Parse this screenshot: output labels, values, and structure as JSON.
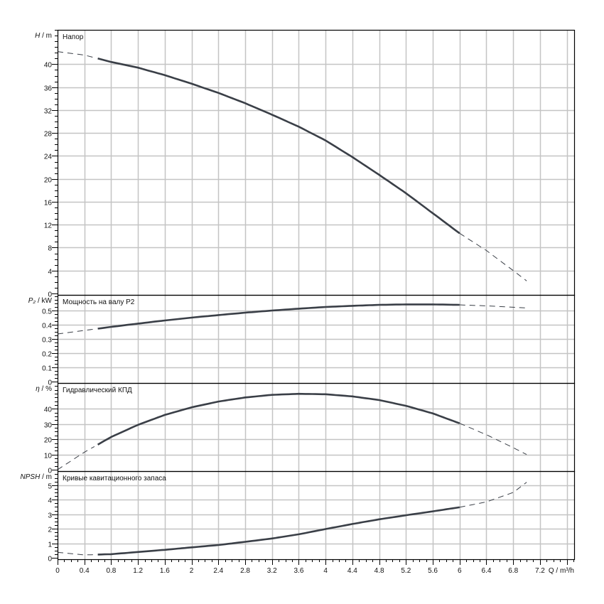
{
  "chart_data": [
    {
      "type": "line",
      "title": "Напор",
      "ylabel_italic": "H",
      "ylabel_unit": " / m",
      "ylim": [
        0,
        46
      ],
      "yticks": [
        0,
        4,
        8,
        12,
        16,
        20,
        24,
        28,
        32,
        36,
        40
      ],
      "ytick_labels": [
        "0",
        "4",
        "8",
        "12",
        "16",
        "20",
        "24",
        "28",
        "32",
        "36",
        "40"
      ],
      "x": [
        0,
        0.4,
        0.8,
        1.2,
        1.6,
        2.0,
        2.4,
        2.8,
        3.2,
        3.6,
        4.0,
        4.4,
        4.8,
        5.2,
        5.6,
        6.0,
        6.4,
        6.8,
        7.0
      ],
      "y": [
        42.2,
        41.6,
        40.4,
        39.4,
        38.1,
        36.6,
        35.0,
        33.2,
        31.2,
        29.1,
        26.7,
        23.8,
        20.7,
        17.5,
        14.0,
        10.5,
        7.5,
        4.0,
        2.2
      ],
      "solid_range": [
        0.6,
        6.0
      ]
    },
    {
      "type": "line",
      "title": "Мощность на валу P2",
      "ylabel_italic": "P₂",
      "ylabel_unit": " / kW",
      "ylim": [
        0,
        0.61
      ],
      "yticks": [
        0,
        0.1,
        0.2,
        0.3,
        0.4,
        0.5
      ],
      "ytick_labels": [
        "0",
        "0.1",
        "0.2",
        "0.3",
        "0.4",
        "0.5"
      ],
      "x": [
        0,
        0.4,
        0.8,
        1.2,
        1.6,
        2.0,
        2.4,
        2.8,
        3.2,
        3.6,
        4.0,
        4.4,
        4.8,
        5.2,
        5.6,
        6.0,
        6.4,
        6.8,
        7.0
      ],
      "y": [
        0.335,
        0.36,
        0.385,
        0.408,
        0.43,
        0.45,
        0.468,
        0.485,
        0.5,
        0.513,
        0.525,
        0.533,
        0.54,
        0.543,
        0.543,
        0.54,
        0.533,
        0.523,
        0.518
      ],
      "solid_range": [
        0.6,
        6.0
      ]
    },
    {
      "type": "line",
      "title": "Гидравлический КПД",
      "ylabel_italic": "η",
      "ylabel_unit": " / %",
      "ylim": [
        0,
        57
      ],
      "yticks": [
        0,
        10,
        20,
        30,
        40
      ],
      "ytick_labels": [
        "0",
        "10",
        "20",
        "30",
        "40"
      ],
      "x": [
        0,
        0.4,
        0.8,
        1.2,
        1.6,
        2.0,
        2.4,
        2.8,
        3.2,
        3.6,
        4.0,
        4.4,
        4.8,
        5.2,
        5.6,
        6.0,
        6.4,
        6.8,
        7.0
      ],
      "y": [
        0,
        11.5,
        21.5,
        29.5,
        36,
        41,
        44.8,
        47.5,
        49.2,
        49.9,
        49.6,
        48.2,
        45.8,
        42,
        37,
        30.5,
        23,
        14.5,
        10
      ],
      "solid_range": [
        0.6,
        6.0
      ]
    },
    {
      "type": "line",
      "title": "Кривые кавитационного запаса",
      "ylabel_italic": "NPSH",
      "ylabel_unit": " / m",
      "ylim": [
        0,
        5.97
      ],
      "yticks": [
        0,
        1,
        2,
        3,
        4,
        5
      ],
      "ytick_labels": [
        "0",
        "1",
        "2",
        "3",
        "4",
        "5"
      ],
      "x": [
        0,
        0.4,
        0.8,
        1.2,
        1.6,
        2.0,
        2.4,
        2.8,
        3.2,
        3.6,
        4.0,
        4.4,
        4.8,
        5.2,
        5.6,
        6.0,
        6.4,
        6.8,
        7.0
      ],
      "y": [
        0.38,
        0.2,
        0.25,
        0.4,
        0.55,
        0.72,
        0.88,
        1.1,
        1.33,
        1.62,
        1.98,
        2.33,
        2.65,
        2.93,
        3.2,
        3.48,
        3.85,
        4.5,
        5.2
      ],
      "solid_range": [
        0.6,
        6.0
      ]
    }
  ],
  "x_axis": {
    "xlim": [
      0,
      7.71
    ],
    "ticks": [
      0,
      0.4,
      0.8,
      1.2,
      1.6,
      2,
      2.4,
      2.8,
      3.2,
      3.6,
      4,
      4.4,
      4.8,
      5.2,
      5.6,
      6,
      6.4,
      6.8,
      7.2
    ],
    "tick_labels": [
      "0",
      "0.4",
      "0.8",
      "1.2",
      "1.6",
      "2",
      "2.4",
      "2.8",
      "3.2",
      "3.6",
      "4",
      "4.4",
      "4.8",
      "5.2",
      "5.6",
      "6",
      "6.4",
      "6.8",
      "7.2"
    ],
    "label": "Q / m³/h",
    "grid_step": 0.4
  },
  "colors": {
    "curve": "#3a3f47",
    "grid": "#c4c4c4",
    "axis": "#000000"
  }
}
